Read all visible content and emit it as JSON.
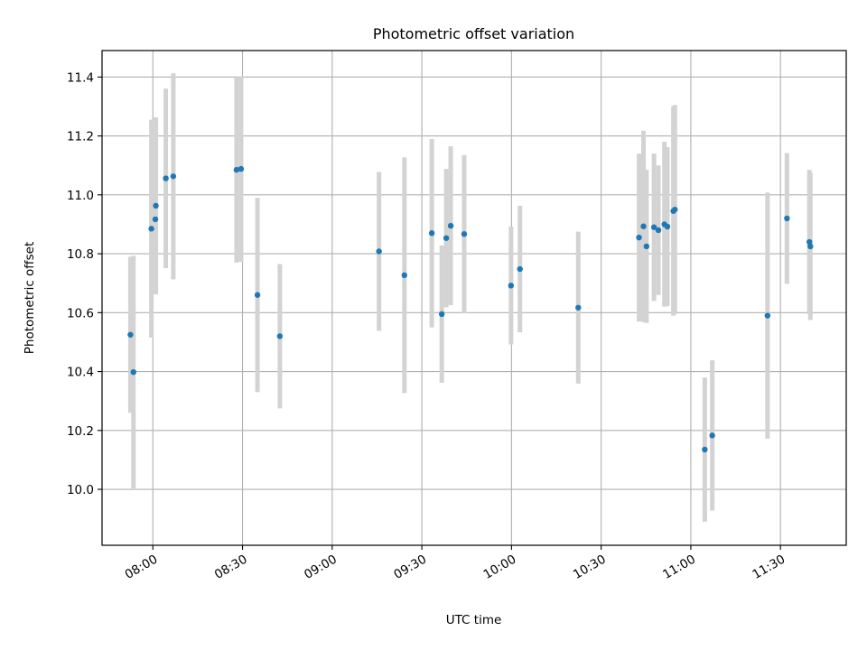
{
  "chart_data": {
    "type": "scatter",
    "title": "Photometric offset variation",
    "xlabel": "UTC time",
    "ylabel": "Photometric offset",
    "grid": true,
    "legend": "none",
    "colors": {
      "point": "#1f77b4",
      "errorbar": "#d3d3d3",
      "grid": "#b0b0b0",
      "frame": "#000000"
    },
    "xlim": [
      "07:43",
      "11:52"
    ],
    "ylim": [
      9.81,
      11.49
    ],
    "x_ticks": [
      "08:00",
      "08:30",
      "09:00",
      "09:30",
      "10:00",
      "10:30",
      "11:00",
      "11:30"
    ],
    "y_ticks": [
      "10.0",
      "10.2",
      "10.4",
      "10.6",
      "10.8",
      "11.0",
      "11.2",
      "11.4"
    ],
    "points": [
      {
        "t": "07:52:30",
        "y": 10.525,
        "err": 0.265
      },
      {
        "t": "07:53:30",
        "y": 10.398,
        "err": 0.395
      },
      {
        "t": "07:59:30",
        "y": 10.885,
        "err": 0.37
      },
      {
        "t": "08:00:50",
        "y": 10.917,
        "err": 0.255
      },
      {
        "t": "08:01:00",
        "y": 10.963,
        "err": 0.3
      },
      {
        "t": "08:04:20",
        "y": 11.056,
        "err": 0.305
      },
      {
        "t": "08:06:50",
        "y": 11.063,
        "err": 0.35
      },
      {
        "t": "08:28:00",
        "y": 11.085,
        "err": 0.315
      },
      {
        "t": "08:29:30",
        "y": 11.088,
        "err": 0.315
      },
      {
        "t": "08:35:00",
        "y": 10.66,
        "err": 0.33
      },
      {
        "t": "08:42:30",
        "y": 10.52,
        "err": 0.245
      },
      {
        "t": "09:15:40",
        "y": 10.808,
        "err": 0.27
      },
      {
        "t": "09:24:10",
        "y": 10.727,
        "err": 0.4
      },
      {
        "t": "09:33:20",
        "y": 10.87,
        "err": 0.32
      },
      {
        "t": "09:36:40",
        "y": 10.595,
        "err": 0.233
      },
      {
        "t": "09:38:10",
        "y": 10.853,
        "err": 0.235
      },
      {
        "t": "09:39:40",
        "y": 10.895,
        "err": 0.27
      },
      {
        "t": "09:44:10",
        "y": 10.867,
        "err": 0.268
      },
      {
        "t": "09:59:50",
        "y": 10.692,
        "err": 0.2
      },
      {
        "t": "10:02:50",
        "y": 10.748,
        "err": 0.215
      },
      {
        "t": "10:22:20",
        "y": 10.617,
        "err": 0.258
      },
      {
        "t": "10:42:40",
        "y": 10.855,
        "err": 0.285
      },
      {
        "t": "10:44:10",
        "y": 10.893,
        "err": 0.325
      },
      {
        "t": "10:45:10",
        "y": 10.825,
        "err": 0.26
      },
      {
        "t": "10:47:40",
        "y": 10.89,
        "err": 0.25
      },
      {
        "t": "10:49:10",
        "y": 10.88,
        "err": 0.22
      },
      {
        "t": "10:51:10",
        "y": 10.9,
        "err": 0.28
      },
      {
        "t": "10:52:10",
        "y": 10.892,
        "err": 0.27
      },
      {
        "t": "10:54:10",
        "y": 10.945,
        "err": 0.355
      },
      {
        "t": "10:54:40",
        "y": 10.95,
        "err": 0.355
      },
      {
        "t": "11:04:40",
        "y": 10.135,
        "err": 0.245
      },
      {
        "t": "11:07:10",
        "y": 10.183,
        "err": 0.255
      },
      {
        "t": "11:25:40",
        "y": 10.59,
        "err": 0.418
      },
      {
        "t": "11:32:10",
        "y": 10.92,
        "err": 0.222
      },
      {
        "t": "11:39:40",
        "y": 10.84,
        "err": 0.245
      },
      {
        "t": "11:40:00",
        "y": 10.825,
        "err": 0.25
      }
    ]
  }
}
